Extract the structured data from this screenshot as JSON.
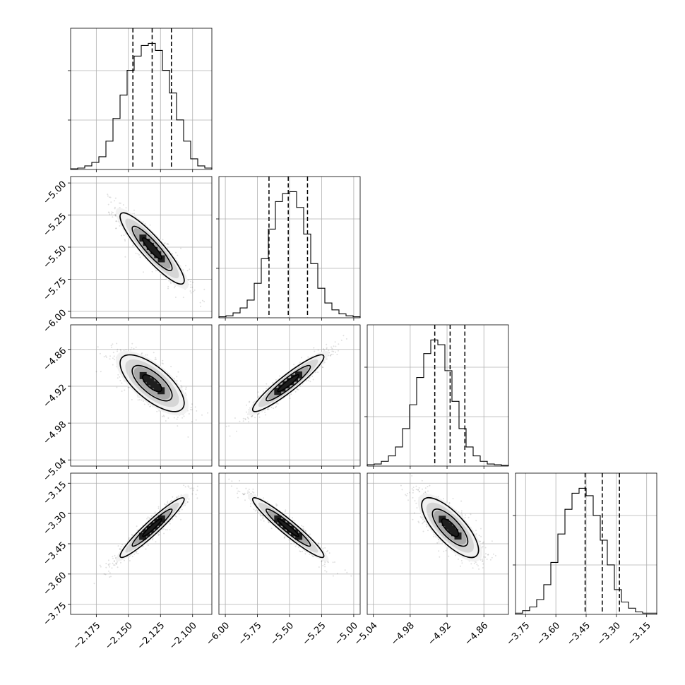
{
  "chart_data": {
    "type": "corner",
    "grid": true,
    "parameters": [
      {
        "mean": -2.1315,
        "sd": 0.0135,
        "quantiles": [
          -2.1465,
          -2.1315,
          -2.1165
        ],
        "range": [
          -2.195,
          -2.085
        ],
        "ticks": [
          -2.175,
          -2.15,
          -2.125,
          -2.1
        ],
        "tick_labels": [
          "−2.175",
          "−2.150",
          "−2.125",
          "−2.100"
        ]
      },
      {
        "mean": -5.51,
        "sd": 0.15,
        "quantiles": [
          -5.66,
          -5.51,
          -5.36
        ],
        "range": [
          -6.05,
          -4.95
        ],
        "ticks": [
          -6.0,
          -5.75,
          -5.5,
          -5.25,
          -5.0
        ],
        "tick_labels": [
          "−6.00",
          "−5.75",
          "−5.50",
          "−5.25",
          "−5.00"
        ]
      },
      {
        "mean": -4.915,
        "sd": 0.025,
        "quantiles": [
          -4.94,
          -4.915,
          -4.891
        ],
        "range": [
          -5.05,
          -4.82
        ],
        "ticks": [
          -5.04,
          -4.98,
          -4.92,
          -4.86
        ],
        "tick_labels": [
          "−5.04",
          "−4.98",
          "−4.92",
          "−4.86"
        ]
      },
      {
        "mean": -3.37,
        "sd": 0.08,
        "quantiles": [
          -3.455,
          -3.37,
          -3.285
        ],
        "range": [
          -3.8,
          -3.1
        ],
        "ticks": [
          -3.75,
          -3.6,
          -3.45,
          -3.3,
          -3.15
        ],
        "tick_labels": [
          "−3.75",
          "−3.60",
          "−3.45",
          "−3.30",
          "−3.15"
        ]
      }
    ],
    "histograms": [
      {
        "edges_from": -2.195,
        "bin_width": 0.0055,
        "counts": [
          1,
          2,
          5,
          10,
          18,
          40,
          72,
          105,
          140,
          160,
          175,
          178,
          168,
          140,
          108,
          70,
          40,
          15,
          5,
          2
        ]
      },
      {
        "edges_from": -6.05,
        "bin_width": 0.055,
        "counts": [
          1,
          2,
          5,
          10,
          18,
          35,
          60,
          90,
          118,
          126,
          128,
          112,
          85,
          55,
          30,
          15,
          8,
          4,
          2,
          1
        ]
      },
      {
        "edges_from": -5.05,
        "bin_width": 0.0115,
        "counts": [
          2,
          3,
          7,
          15,
          28,
          55,
          90,
          130,
          165,
          185,
          178,
          140,
          95,
          55,
          28,
          15,
          7,
          3,
          2,
          1
        ]
      },
      {
        "edges_from": -3.8,
        "bin_width": 0.035,
        "counts": [
          1,
          3,
          6,
          12,
          24,
          42,
          65,
          85,
          98,
          102,
          96,
          80,
          60,
          40,
          20,
          10,
          5,
          2,
          1,
          1
        ]
      }
    ],
    "correlations": {
      "1-0": -0.9,
      "2-0": -0.7,
      "2-1": 0.93,
      "3-0": 0.95,
      "3-1": -0.95,
      "3-2": -0.75
    },
    "contour_levels": [
      0.5,
      1.0,
      1.5
    ]
  }
}
